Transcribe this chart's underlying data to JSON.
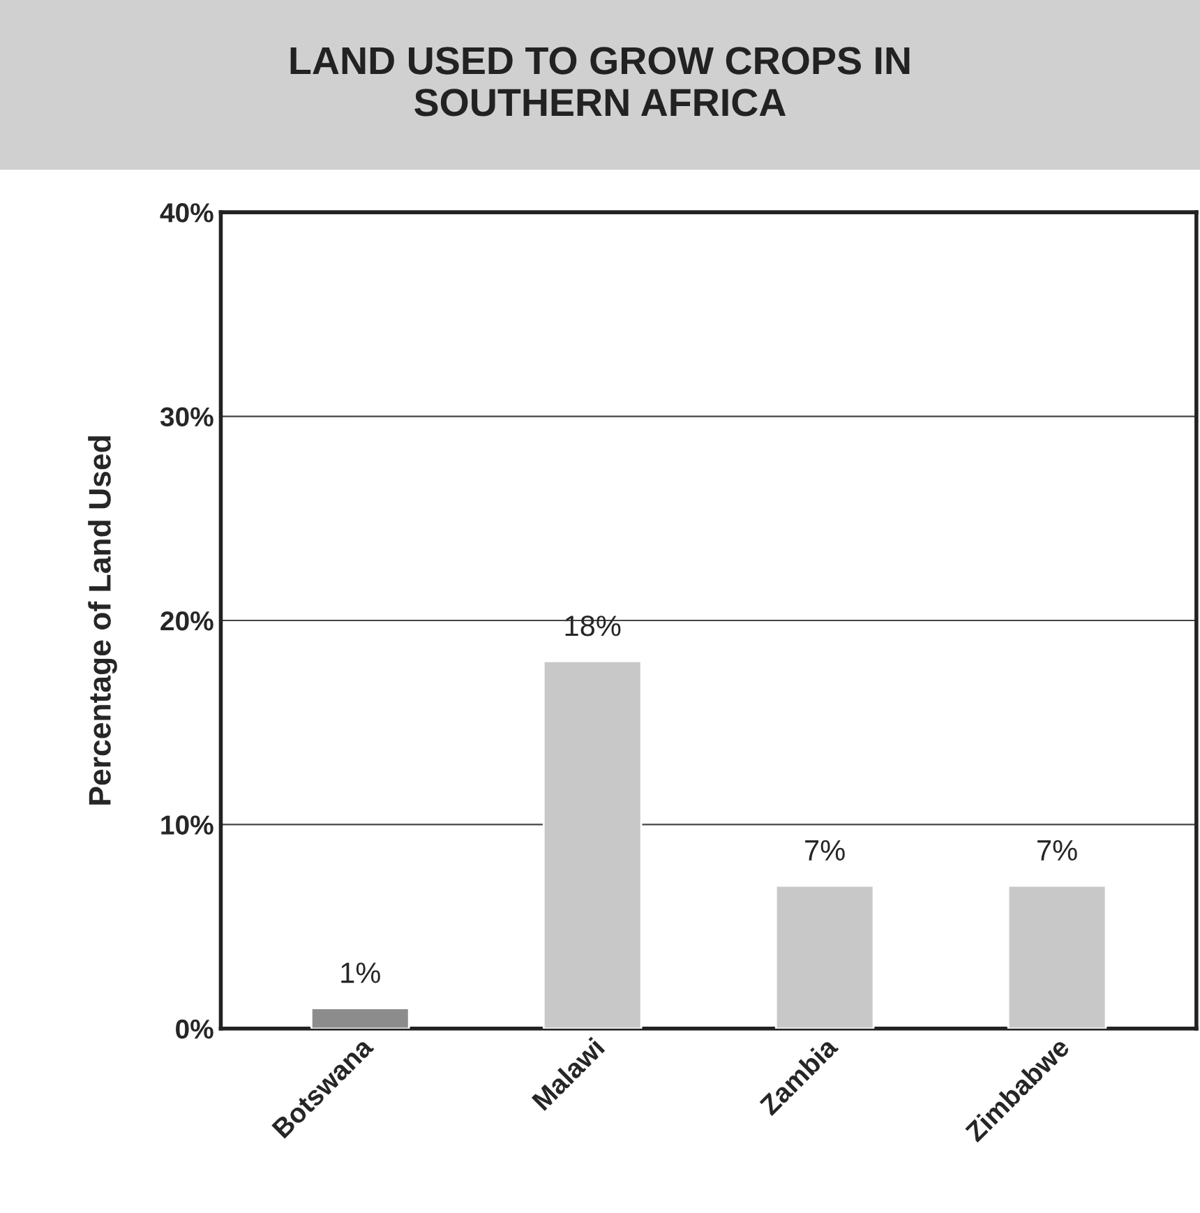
{
  "chart_data": {
    "type": "bar",
    "title": "LAND USED TO GROW CROPS IN\nSOUTHERN AFRICA",
    "ylabel": "Percentage of Land Used",
    "categories": [
      "Botswana",
      "Malawi",
      "Zambia",
      "Zimbabwe"
    ],
    "values": [
      1,
      18,
      7,
      7
    ],
    "colors": [
      "#8c8c8c",
      "#c8c8c8",
      "#c8c8c8",
      "#c8c8c8"
    ],
    "value_labels": [
      "1%",
      "18%",
      "7%",
      "7%"
    ],
    "ylim": [
      0,
      40
    ],
    "yticks": [
      {
        "value": 0,
        "label": "0%"
      },
      {
        "value": 10,
        "label": "10%"
      },
      {
        "value": 20,
        "label": "20%"
      },
      {
        "value": 30,
        "label": "30%"
      },
      {
        "value": 40,
        "label": "40%"
      }
    ],
    "grid": "y",
    "legend": false
  }
}
